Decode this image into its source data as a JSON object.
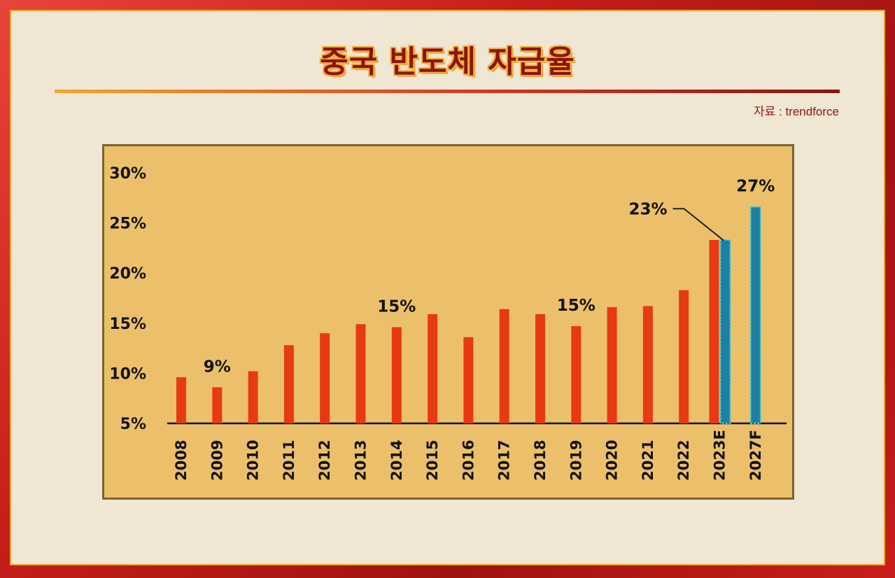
{
  "title": "중국 반도체 자급율",
  "source": "자료 : trendforce",
  "colors": {
    "bar_main": "#e73a12",
    "bar_forecast": "#1d7fa6",
    "bar_forecast_edge": "#35d2d6",
    "plot_bg": "#ecc06a",
    "title_color": "#8c1410"
  },
  "chart_data": {
    "type": "bar",
    "title": "중국 반도체 자급율",
    "xlabel": "",
    "ylabel": "",
    "ylim": [
      5,
      30
    ],
    "yticks": [
      "5%",
      "10%",
      "15%",
      "20%",
      "25%",
      "30%"
    ],
    "grid": false,
    "legend": "none",
    "categories": [
      "2008",
      "2009",
      "2010",
      "2011",
      "2012",
      "2013",
      "2014",
      "2015",
      "2016",
      "2017",
      "2018",
      "2019",
      "2020",
      "2021",
      "2022",
      "2023E",
      "2027F"
    ],
    "series": [
      {
        "values": [
          9.6,
          8.6,
          10.2,
          12.8,
          14.0,
          14.9,
          14.6,
          15.9,
          13.6,
          16.4,
          15.9,
          14.7,
          16.6,
          16.7,
          18.3,
          23.3,
          null
        ]
      },
      {
        "values": [
          null,
          null,
          null,
          null,
          null,
          null,
          null,
          null,
          null,
          null,
          null,
          null,
          null,
          null,
          null,
          23.3,
          26.6
        ]
      }
    ],
    "data_labels": [
      {
        "category": "2009",
        "text": "9%"
      },
      {
        "category": "2014",
        "text": "15%"
      },
      {
        "category": "2019",
        "text": "15%"
      },
      {
        "category": "2023E",
        "text": "23%"
      },
      {
        "category": "2027F",
        "text": "27%"
      }
    ]
  }
}
